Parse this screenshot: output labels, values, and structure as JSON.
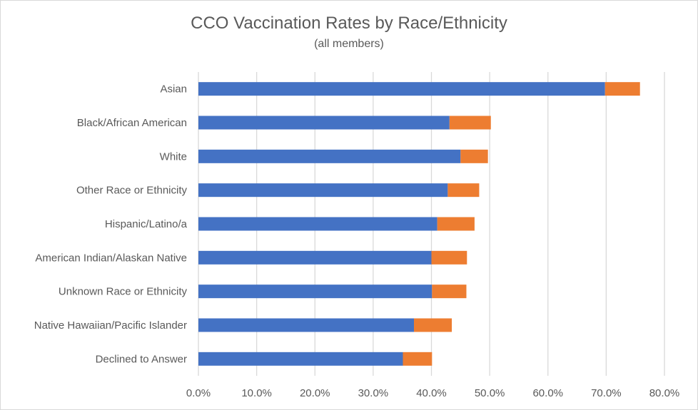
{
  "chart_data": {
    "type": "bar",
    "orientation": "horizontal",
    "stacked": true,
    "title": "CCO Vaccination Rates by Race/Ethnicity",
    "subtitle": "(all members)",
    "xlabel": "",
    "ylabel": "",
    "xlim": [
      0,
      80
    ],
    "x_ticks": [
      "0.0%",
      "10.0%",
      "20.0%",
      "30.0%",
      "40.0%",
      "50.0%",
      "60.0%",
      "70.0%",
      "80.0%"
    ],
    "grid": "vertical",
    "legend": "none",
    "categories": [
      "Asian",
      "Black/African American",
      "White",
      "Other Race or Ethnicity",
      "Hispanic/Latino/a",
      "American Indian/Alaskan Native",
      "Unknown Race or Ethnicity",
      "Native Hawaiian/Pacific Islander",
      "Declined to Answer"
    ],
    "series": [
      {
        "color": "#4472c4",
        "values": [
          69.8,
          43.1,
          45.0,
          42.8,
          41.0,
          40.0,
          40.1,
          37.0,
          35.1
        ]
      },
      {
        "color": "#ed7d31",
        "values": [
          6.0,
          7.1,
          4.7,
          5.4,
          6.4,
          6.1,
          5.9,
          6.5,
          5.0
        ]
      }
    ]
  }
}
